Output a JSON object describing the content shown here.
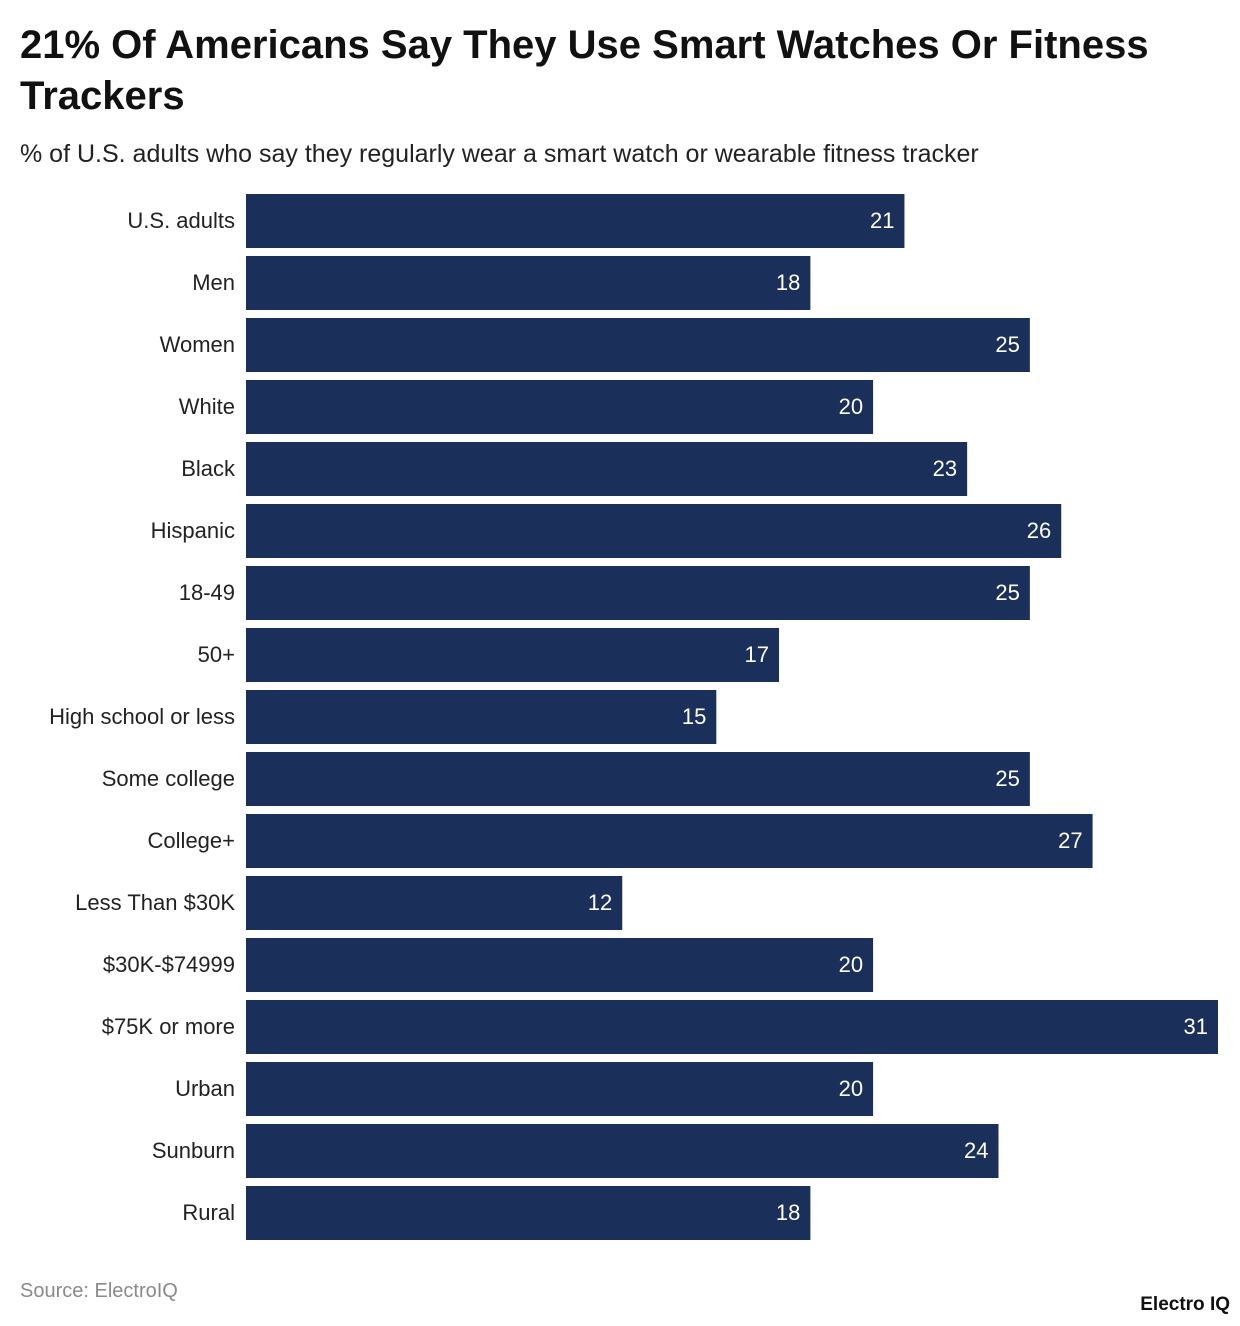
{
  "chart_data": {
    "type": "bar",
    "orientation": "horizontal",
    "title": "21% Of Americans Say They Use Smart Watches Or Fitness Trackers",
    "subtitle": "% of U.S. adults who say they regularly wear a smart watch or wearable fitness tracker",
    "categories": [
      "U.S. adults",
      "Men",
      "Women",
      "White",
      "Black",
      "Hispanic",
      "18-49",
      "50+",
      "High school or less",
      "Some college",
      "College+",
      "Less Than $30K",
      "$30K-$74999",
      "$75K or more",
      "Urban",
      "Sunburn",
      "Rural"
    ],
    "values": [
      21,
      18,
      25,
      20,
      23,
      26,
      25,
      17,
      15,
      25,
      27,
      12,
      20,
      31,
      20,
      24,
      18
    ],
    "color": "#1b2f5b",
    "source": "Source: ElectroIQ",
    "logo": "Electro IQ"
  }
}
